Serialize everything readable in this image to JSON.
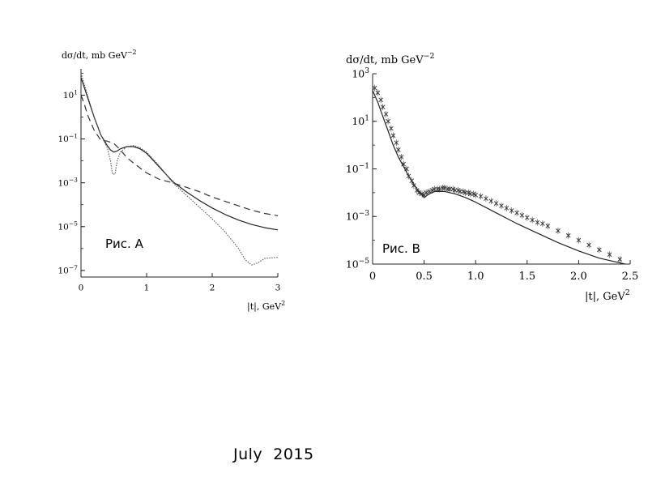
{
  "footer": "July  2015",
  "chart_data": [
    {
      "type": "line",
      "figure_label": "Рис. А",
      "ylabel": "dσ/dt, mb GeV",
      "ylabel_exp": "−2",
      "xlabel": "|t|, GeV",
      "xlabel_exp": "2",
      "x_ticks": [
        "0",
        "1",
        "2",
        "3"
      ],
      "y_ticks": [
        {
          "base": "10",
          "exp": "1"
        },
        {
          "base": "10",
          "exp": "−1"
        },
        {
          "base": "10",
          "exp": "−3"
        },
        {
          "base": "10",
          "exp": "−5"
        },
        {
          "base": "10",
          "exp": "−7"
        }
      ],
      "xlim": [
        0,
        3
      ],
      "ylim_log10": [
        -7.3,
        2.2
      ],
      "grid": false,
      "series": [
        {
          "style": "solid",
          "color": "#222222",
          "x": [
            0,
            0.1,
            0.2,
            0.3,
            0.4,
            0.45,
            0.5,
            0.55,
            0.6,
            0.7,
            0.8,
            0.9,
            1.0,
            1.2,
            1.4,
            1.6,
            1.8,
            2.0,
            2.2,
            2.4,
            2.6,
            2.8,
            3.0
          ],
          "log10y": [
            1.8,
            0.9,
            0,
            -0.8,
            -1.3,
            -1.5,
            -1.6,
            -1.55,
            -1.45,
            -1.35,
            -1.35,
            -1.45,
            -1.65,
            -2.3,
            -2.95,
            -3.4,
            -3.8,
            -4.15,
            -4.45,
            -4.7,
            -4.9,
            -5.05,
            -5.15
          ]
        },
        {
          "style": "dotted",
          "color": "#555555",
          "x": [
            0,
            0.1,
            0.2,
            0.3,
            0.4,
            0.45,
            0.48,
            0.52,
            0.55,
            0.6,
            0.7,
            0.8,
            0.9,
            1.0,
            1.2,
            1.4,
            1.6,
            1.8,
            2.0,
            2.2,
            2.4,
            2.5,
            2.6,
            2.7,
            2.8,
            3.0
          ],
          "log10y": [
            2,
            1.0,
            0,
            -0.8,
            -1.4,
            -2.0,
            -2.6,
            -2.6,
            -2.0,
            -1.6,
            -1.35,
            -1.3,
            -1.4,
            -1.6,
            -2.25,
            -3.0,
            -3.55,
            -4.1,
            -4.65,
            -5.25,
            -6.0,
            -6.5,
            -6.75,
            -6.65,
            -6.45,
            -6.4
          ]
        },
        {
          "style": "dashed",
          "color": "#333333",
          "x": [
            0,
            0.05,
            0.1,
            0.2,
            0.3,
            0.4,
            0.5,
            0.6,
            0.7,
            0.8,
            1.0,
            1.2,
            1.4,
            1.6,
            1.8,
            2.0,
            2.2,
            2.4,
            2.6,
            2.8,
            3.0
          ],
          "log10y": [
            1,
            0.6,
            0.1,
            -0.6,
            -1.05,
            -1.1,
            -1.2,
            -1.5,
            -1.85,
            -2.1,
            -2.55,
            -2.85,
            -3.0,
            -3.2,
            -3.4,
            -3.65,
            -3.85,
            -4.05,
            -4.25,
            -4.4,
            -4.5
          ]
        }
      ]
    },
    {
      "type": "line",
      "figure_label": "Рис. B",
      "ylabel": "dσ/dt, mb GeV",
      "ylabel_exp": "−2",
      "xlabel": "|t|, GeV",
      "xlabel_exp": "2",
      "x_ticks": [
        "0",
        "0.5",
        "1.0",
        "1.5",
        "2.0",
        "2.5"
      ],
      "y_ticks": [
        {
          "base": "10",
          "exp": "3"
        },
        {
          "base": "10",
          "exp": "1"
        },
        {
          "base": "10",
          "exp": "−1"
        },
        {
          "base": "10",
          "exp": "−3"
        },
        {
          "base": "10",
          "exp": "−5"
        }
      ],
      "xlim": [
        0,
        2.5
      ],
      "ylim_log10": [
        -5,
        3
      ],
      "grid": false,
      "series": [
        {
          "style": "solid",
          "color": "#222222",
          "x": [
            0,
            0.05,
            0.1,
            0.15,
            0.2,
            0.25,
            0.3,
            0.35,
            0.4,
            0.45,
            0.5,
            0.55,
            0.6,
            0.7,
            0.8,
            0.9,
            1.0,
            1.2,
            1.4,
            1.6,
            1.8,
            2.0,
            2.2,
            2.4,
            2.45
          ],
          "log10y": [
            2.3,
            1.8,
            1.2,
            0.6,
            0.0,
            -0.5,
            -0.9,
            -1.3,
            -1.65,
            -1.95,
            -2.2,
            -2.05,
            -1.95,
            -1.95,
            -2.05,
            -2.2,
            -2.4,
            -2.85,
            -3.3,
            -3.7,
            -4.1,
            -4.45,
            -4.75,
            -4.95,
            -5.0
          ]
        },
        {
          "style": "markers",
          "color": "#333333",
          "x": [
            0.02,
            0.05,
            0.08,
            0.1,
            0.13,
            0.15,
            0.18,
            0.2,
            0.23,
            0.25,
            0.28,
            0.3,
            0.33,
            0.35,
            0.38,
            0.4,
            0.43,
            0.45,
            0.48,
            0.5,
            0.52,
            0.55,
            0.58,
            0.6,
            0.63,
            0.65,
            0.68,
            0.7,
            0.73,
            0.75,
            0.78,
            0.8,
            0.83,
            0.85,
            0.88,
            0.9,
            0.93,
            0.95,
            0.98,
            1.0,
            1.05,
            1.1,
            1.15,
            1.2,
            1.25,
            1.3,
            1.35,
            1.4,
            1.45,
            1.5,
            1.55,
            1.6,
            1.65,
            1.7,
            1.8,
            1.9,
            2.0,
            2.1,
            2.2,
            2.3,
            2.4
          ],
          "log10y": [
            2.4,
            2.2,
            1.9,
            1.6,
            1.3,
            1.0,
            0.7,
            0.4,
            0.1,
            -0.2,
            -0.5,
            -0.8,
            -1.0,
            -1.3,
            -1.5,
            -1.7,
            -1.9,
            -2.0,
            -2.05,
            -2.1,
            -2.0,
            -1.95,
            -1.9,
            -1.85,
            -1.85,
            -1.85,
            -1.8,
            -1.8,
            -1.85,
            -1.85,
            -1.85,
            -1.9,
            -1.9,
            -1.95,
            -1.95,
            -2.0,
            -2.0,
            -2.05,
            -2.05,
            -2.1,
            -2.15,
            -2.25,
            -2.35,
            -2.45,
            -2.55,
            -2.65,
            -2.75,
            -2.85,
            -2.95,
            -3.05,
            -3.15,
            -3.25,
            -3.3,
            -3.4,
            -3.6,
            -3.8,
            -4.0,
            -4.2,
            -4.4,
            -4.6,
            -4.8
          ]
        }
      ]
    }
  ]
}
